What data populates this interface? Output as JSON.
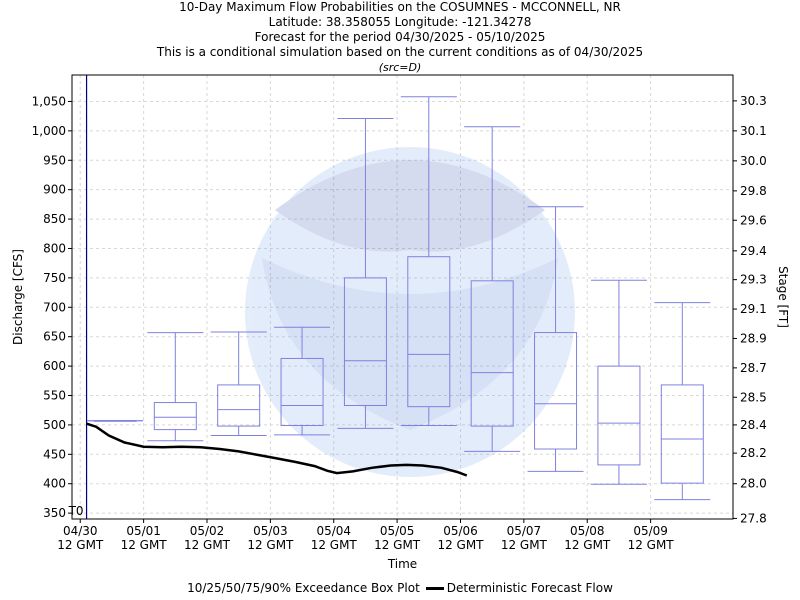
{
  "titles": {
    "line1": "10-Day Maximum Flow Probabilities on the COSUMNES - MCCONNELL, NR",
    "line2": "Latitude: 38.358055 Longitude: -121.34278",
    "line3": "Forecast for the period 04/30/2025 - 05/10/2025",
    "line4": "This is a conditional simulation based on the current conditions as of 04/30/2025",
    "line5": "(src=D)"
  },
  "legend": {
    "box_label": "10/25/50/75/90% Exceedance Box Plot",
    "line_label": "Deterministic Forecast Flow"
  },
  "colors": {
    "box": "#8080e0",
    "flow": "#000000",
    "grid": "#d8d8d8",
    "t0_line": "#000080"
  },
  "chart_data": {
    "type": "box",
    "xlabel": "Time",
    "ylabel": "Discharge [CFS]",
    "ylabel_right": "Stage [FT]",
    "ylim": [
      340,
      1095
    ],
    "xlim": [
      -0.13,
      10.3
    ],
    "x_ticks": [
      {
        "x": 0,
        "label1": "04/30",
        "label2": "12 GMT"
      },
      {
        "x": 1,
        "label1": "05/01",
        "label2": "12 GMT"
      },
      {
        "x": 2,
        "label1": "05/02",
        "label2": "12 GMT"
      },
      {
        "x": 3,
        "label1": "05/03",
        "label2": "12 GMT"
      },
      {
        "x": 4,
        "label1": "05/04",
        "label2": "12 GMT"
      },
      {
        "x": 5,
        "label1": "05/05",
        "label2": "12 GMT"
      },
      {
        "x": 6,
        "label1": "05/06",
        "label2": "12 GMT"
      },
      {
        "x": 7,
        "label1": "05/07",
        "label2": "12 GMT"
      },
      {
        "x": 8,
        "label1": "05/08",
        "label2": "12 GMT"
      },
      {
        "x": 9,
        "label1": "05/09",
        "label2": "12 GMT"
      }
    ],
    "y_ticks": [
      350,
      400,
      450,
      500,
      550,
      600,
      650,
      700,
      750,
      800,
      850,
      900,
      950,
      1000,
      1050
    ],
    "y_tick_labels": [
      "350",
      "400",
      "450",
      "500",
      "550",
      "600",
      "650",
      "700",
      "750",
      "800",
      "850",
      "900",
      "950",
      "1,000",
      "1,050"
    ],
    "stage_ticks": [
      {
        "flow": 341,
        "label": "27.8"
      },
      {
        "flow": 400,
        "label": "28.0"
      },
      {
        "flow": 452,
        "label": "28.2"
      },
      {
        "flow": 500,
        "label": "28.4"
      },
      {
        "flow": 547,
        "label": "28.5"
      },
      {
        "flow": 597,
        "label": "28.7"
      },
      {
        "flow": 647,
        "label": "28.9"
      },
      {
        "flow": 697,
        "label": "29.1"
      },
      {
        "flow": 747,
        "label": "29.3"
      },
      {
        "flow": 796,
        "label": "29.4"
      },
      {
        "flow": 848,
        "label": "29.6"
      },
      {
        "flow": 898,
        "label": "29.8"
      },
      {
        "flow": 949,
        "label": "30.0"
      },
      {
        "flow": 1000,
        "label": "30.1"
      },
      {
        "flow": 1051,
        "label": "30.3"
      }
    ],
    "t0": {
      "x": 0.1,
      "label": "T0"
    },
    "boxes": [
      {
        "x": 0.55,
        "p10": 507,
        "p25": 507,
        "p50": 507,
        "p75": 507,
        "p90": 507
      },
      {
        "x": 1.5,
        "p10": 473,
        "p25": 492,
        "p50": 513,
        "p75": 538,
        "p90": 657
      },
      {
        "x": 2.5,
        "p10": 482,
        "p25": 498,
        "p50": 526,
        "p75": 568,
        "p90": 658
      },
      {
        "x": 3.5,
        "p10": 483,
        "p25": 499,
        "p50": 533,
        "p75": 613,
        "p90": 666
      },
      {
        "x": 4.5,
        "p10": 494,
        "p25": 533,
        "p50": 609,
        "p75": 750,
        "p90": 1021
      },
      {
        "x": 5.5,
        "p10": 499,
        "p25": 531,
        "p50": 620,
        "p75": 786,
        "p90": 1058
      },
      {
        "x": 6.5,
        "p10": 455,
        "p25": 498,
        "p50": 589,
        "p75": 745,
        "p90": 1007
      },
      {
        "x": 7.5,
        "p10": 421,
        "p25": 459,
        "p50": 536,
        "p75": 657,
        "p90": 871
      },
      {
        "x": 8.5,
        "p10": 399,
        "p25": 432,
        "p50": 503,
        "p75": 600,
        "p90": 746
      },
      {
        "x": 9.5,
        "p10": 373,
        "p25": 401,
        "p50": 476,
        "p75": 568,
        "p90": 708
      }
    ],
    "deterministic": {
      "x": [
        0.1,
        0.25,
        0.45,
        0.7,
        1.0,
        1.3,
        1.6,
        1.9,
        2.2,
        2.5,
        2.8,
        3.1,
        3.4,
        3.7,
        3.9,
        4.05,
        4.3,
        4.6,
        4.9,
        5.15,
        5.4,
        5.7,
        5.95,
        6.1
      ],
      "y": [
        502,
        497,
        482,
        470,
        463,
        462,
        463,
        462,
        459,
        455,
        449,
        443,
        437,
        430,
        422,
        418,
        421,
        427,
        431,
        432,
        431,
        427,
        420,
        414
      ]
    }
  }
}
